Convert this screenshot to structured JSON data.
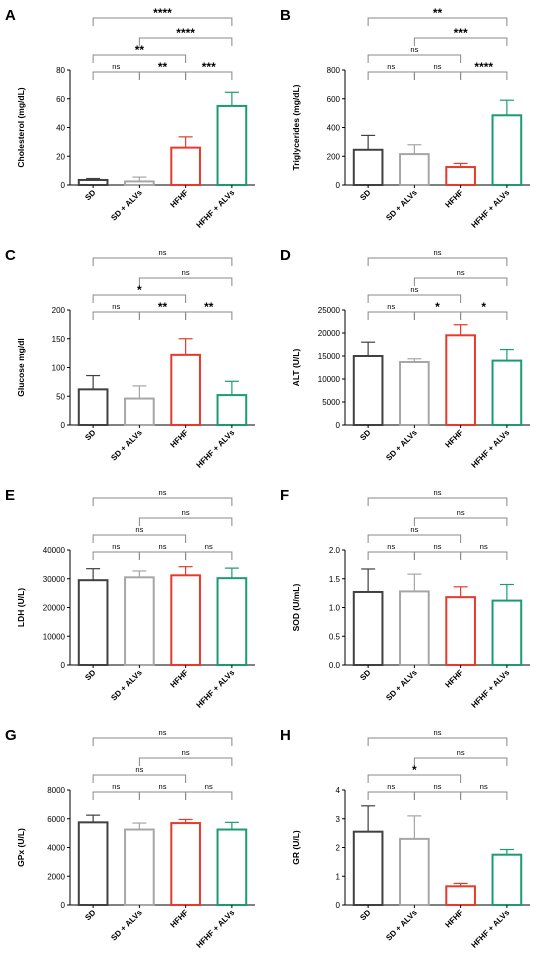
{
  "colors": {
    "SD": "#404040",
    "SD + ALVs": "#a6a6a6",
    "HFHF": "#e8392b",
    "HFHF + ALVs": "#1a9c6e",
    "axis": "#000000",
    "bracket": "#888888"
  },
  "chart_data": [
    {
      "panel_letter": "A",
      "type": "bar",
      "categories": [
        "SD",
        "SD + ALVs",
        "HFHF",
        "HFHF + ALVs"
      ],
      "values": [
        3.5,
        2.5,
        26,
        55
      ],
      "errors": [
        1,
        3,
        7.5,
        9.5
      ],
      "ylabel": "Cholesterol (mg/dL)",
      "ylim": [
        0,
        80
      ],
      "yticks": [
        "0",
        "20",
        "40",
        "60",
        "80"
      ],
      "brackets": [
        {
          "from": 0,
          "to": 3,
          "label": "****"
        },
        {
          "from": 1,
          "to": 3,
          "label": "****"
        },
        {
          "from": 0,
          "to": 2,
          "label": "**"
        },
        {
          "from": 0,
          "to": 1,
          "label": "ns"
        },
        {
          "from": 1,
          "to": 2,
          "label": "**"
        },
        {
          "from": 2,
          "to": 3,
          "label": "***"
        }
      ]
    },
    {
      "panel_letter": "B",
      "type": "bar",
      "categories": [
        "SD",
        "SD + ALVs",
        "HFHF",
        "HFHF + ALVs"
      ],
      "values": [
        245,
        215,
        125,
        485
      ],
      "errors": [
        100,
        65,
        25,
        105
      ],
      "ylabel": "Triglycerides (mg/dL)",
      "ylim": [
        0,
        800
      ],
      "yticks": [
        "0",
        "200",
        "400",
        "600",
        "800"
      ],
      "brackets": [
        {
          "from": 0,
          "to": 3,
          "label": "**"
        },
        {
          "from": 1,
          "to": 3,
          "label": "***"
        },
        {
          "from": 0,
          "to": 2,
          "label": "ns"
        },
        {
          "from": 0,
          "to": 1,
          "label": "ns"
        },
        {
          "from": 1,
          "to": 2,
          "label": "ns"
        },
        {
          "from": 2,
          "to": 3,
          "label": "****"
        }
      ]
    },
    {
      "panel_letter": "C",
      "type": "bar",
      "categories": [
        "SD",
        "SD + ALVs",
        "HFHF",
        "HFHF + ALVs"
      ],
      "values": [
        62,
        46,
        122,
        52
      ],
      "errors": [
        24,
        22,
        28,
        24
      ],
      "ylabel": "Glucose mg/dl",
      "ylim": [
        0,
        200
      ],
      "yticks": [
        "0",
        "50",
        "100",
        "150",
        "200"
      ],
      "brackets": [
        {
          "from": 0,
          "to": 3,
          "label": "ns"
        },
        {
          "from": 1,
          "to": 3,
          "label": "ns"
        },
        {
          "from": 0,
          "to": 2,
          "label": "*"
        },
        {
          "from": 0,
          "to": 1,
          "label": "ns"
        },
        {
          "from": 1,
          "to": 2,
          "label": "**"
        },
        {
          "from": 2,
          "to": 3,
          "label": "**"
        }
      ]
    },
    {
      "panel_letter": "D",
      "type": "bar",
      "categories": [
        "SD",
        "SD + ALVs",
        "HFHF",
        "HFHF + ALVs"
      ],
      "values": [
        15000,
        13700,
        19500,
        14000
      ],
      "errors": [
        3000,
        700,
        2300,
        2400
      ],
      "ylabel": "ALT (U/L)",
      "ylim": [
        0,
        25000
      ],
      "yticks": [
        "0",
        "5000",
        "10000",
        "15000",
        "20000",
        "25000"
      ],
      "brackets": [
        {
          "from": 0,
          "to": 3,
          "label": "ns"
        },
        {
          "from": 1,
          "to": 3,
          "label": "ns"
        },
        {
          "from": 0,
          "to": 2,
          "label": "ns"
        },
        {
          "from": 0,
          "to": 1,
          "label": "ns"
        },
        {
          "from": 1,
          "to": 2,
          "label": "*"
        },
        {
          "from": 2,
          "to": 3,
          "label": "*"
        }
      ]
    },
    {
      "panel_letter": "E",
      "type": "bar",
      "categories": [
        "SD",
        "SD + ALVs",
        "HFHF",
        "HFHF + ALVs"
      ],
      "values": [
        29500,
        30500,
        31200,
        30200
      ],
      "errors": [
        4000,
        2200,
        3000,
        3500
      ],
      "ylabel": "LDH (U/L)",
      "ylim": [
        0,
        40000
      ],
      "yticks": [
        "0",
        "10000",
        "20000",
        "30000",
        "40000"
      ],
      "brackets": [
        {
          "from": 0,
          "to": 3,
          "label": "ns"
        },
        {
          "from": 1,
          "to": 3,
          "label": "ns"
        },
        {
          "from": 0,
          "to": 2,
          "label": "ns"
        },
        {
          "from": 0,
          "to": 1,
          "label": "ns"
        },
        {
          "from": 1,
          "to": 2,
          "label": "ns"
        },
        {
          "from": 2,
          "to": 3,
          "label": "ns"
        }
      ]
    },
    {
      "panel_letter": "F",
      "type": "bar",
      "categories": [
        "SD",
        "SD + ALVs",
        "HFHF",
        "HFHF + ALVs"
      ],
      "values": [
        1.27,
        1.28,
        1.18,
        1.12
      ],
      "errors": [
        0.4,
        0.3,
        0.18,
        0.28
      ],
      "ylabel": "SOD (U/mL)",
      "ylim": [
        0,
        2.0
      ],
      "yticks": [
        "0.0",
        "0.5",
        "1.0",
        "1.5",
        "2.0"
      ],
      "brackets": [
        {
          "from": 0,
          "to": 3,
          "label": "ns"
        },
        {
          "from": 1,
          "to": 3,
          "label": "ns"
        },
        {
          "from": 0,
          "to": 2,
          "label": "ns"
        },
        {
          "from": 0,
          "to": 1,
          "label": "ns"
        },
        {
          "from": 1,
          "to": 2,
          "label": "ns"
        },
        {
          "from": 2,
          "to": 3,
          "label": "ns"
        }
      ]
    },
    {
      "panel_letter": "G",
      "type": "bar",
      "categories": [
        "SD",
        "SD + ALVs",
        "HFHF",
        "HFHF + ALVs"
      ],
      "values": [
        5750,
        5250,
        5700,
        5250
      ],
      "errors": [
        500,
        450,
        250,
        500
      ],
      "ylabel": "GPx (U/L)",
      "ylim": [
        0,
        8000
      ],
      "yticks": [
        "0",
        "2000",
        "4000",
        "6000",
        "8000"
      ],
      "brackets": [
        {
          "from": 0,
          "to": 3,
          "label": "ns"
        },
        {
          "from": 1,
          "to": 3,
          "label": "ns"
        },
        {
          "from": 0,
          "to": 2,
          "label": "ns"
        },
        {
          "from": 0,
          "to": 1,
          "label": "ns"
        },
        {
          "from": 1,
          "to": 2,
          "label": "ns"
        },
        {
          "from": 2,
          "to": 3,
          "label": "ns"
        }
      ]
    },
    {
      "panel_letter": "H",
      "type": "bar",
      "categories": [
        "SD",
        "SD + ALVs",
        "HFHF",
        "HFHF + ALVs"
      ],
      "values": [
        2.55,
        2.3,
        0.65,
        1.75
      ],
      "errors": [
        0.9,
        0.8,
        0.1,
        0.18
      ],
      "ylabel": "GR (U/L)",
      "ylim": [
        0,
        4
      ],
      "yticks": [
        "0",
        "1",
        "2",
        "3",
        "4"
      ],
      "brackets": [
        {
          "from": 0,
          "to": 3,
          "label": "ns"
        },
        {
          "from": 1,
          "to": 3,
          "label": "ns"
        },
        {
          "from": 0,
          "to": 2,
          "label": "*"
        },
        {
          "from": 0,
          "to": 1,
          "label": "ns"
        },
        {
          "from": 1,
          "to": 2,
          "label": "ns"
        },
        {
          "from": 2,
          "to": 3,
          "label": "ns"
        }
      ]
    }
  ]
}
